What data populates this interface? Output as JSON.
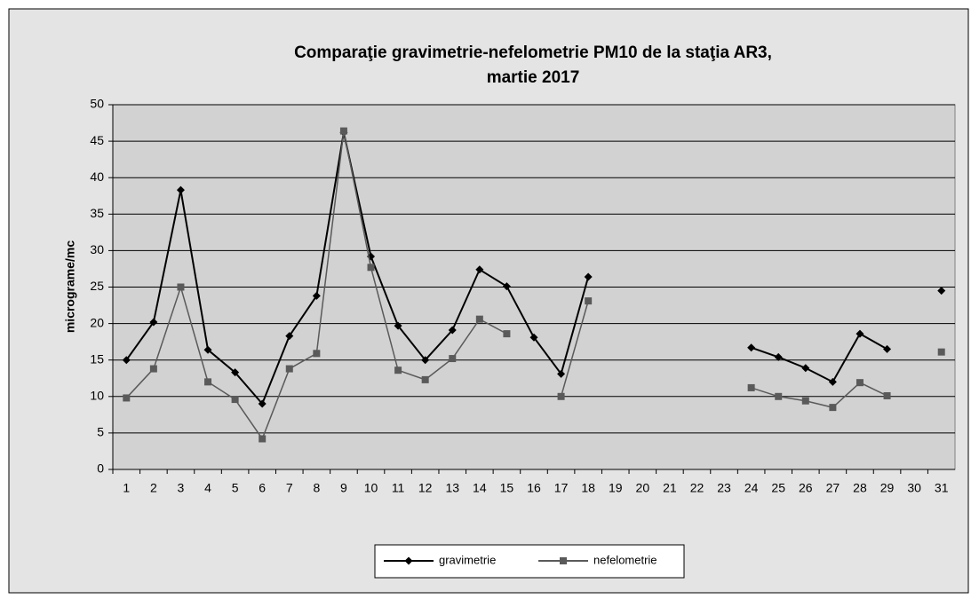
{
  "chart_data": {
    "type": "line",
    "title": [
      "Comparaţie gravimetrie-nefelometrie PM10 de la staţia AR3,",
      "martie 2017"
    ],
    "y_label": "micrograme/mc",
    "categories": [
      "1",
      "2",
      "3",
      "4",
      "5",
      "6",
      "7",
      "8",
      "9",
      "10",
      "11",
      "12",
      "13",
      "14",
      "15",
      "16",
      "17",
      "18",
      "19",
      "20",
      "21",
      "22",
      "23",
      "24",
      "25",
      "26",
      "27",
      "28",
      "29",
      "30",
      "31"
    ],
    "series": [
      {
        "name": "gravimetrie",
        "color": "#000000",
        "marker": "diamond",
        "values": [
          15,
          20.2,
          38.3,
          16.4,
          13.3,
          9,
          18.3,
          23.8,
          46.2,
          29.2,
          19.7,
          15,
          19.1,
          27.4,
          25.1,
          18.1,
          13.1,
          26.4,
          null,
          null,
          null,
          null,
          null,
          16.7,
          15.4,
          13.9,
          12,
          18.6,
          16.5,
          null,
          24.5
        ]
      },
      {
        "name": "nefelometrie",
        "color": "#5a5a5a",
        "marker": "square",
        "values": [
          9.8,
          13.8,
          25,
          12,
          9.6,
          4.2,
          13.8,
          15.9,
          46.4,
          27.7,
          13.6,
          12.3,
          15.2,
          20.6,
          18.6,
          null,
          10,
          23.1,
          null,
          null,
          null,
          null,
          null,
          11.2,
          10,
          9.4,
          8.5,
          11.9,
          10.1,
          null,
          16.1
        ]
      }
    ],
    "ylim": [
      0,
      50
    ],
    "yticks": [
      0,
      5,
      10,
      15,
      20,
      25,
      30,
      35,
      40,
      45,
      50
    ],
    "grid": true,
    "legend": "bottom"
  }
}
